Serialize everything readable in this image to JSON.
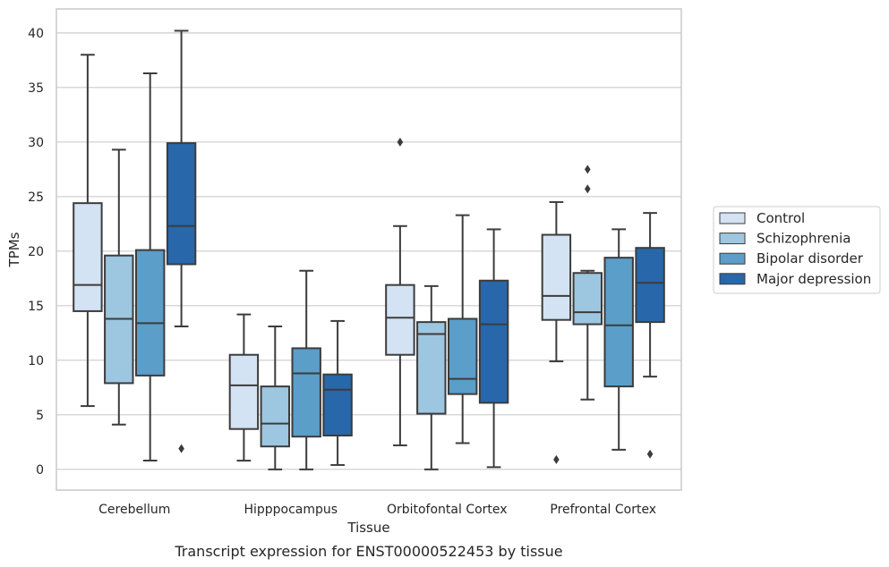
{
  "chart_data": {
    "type": "box",
    "title": "",
    "caption": "Transcript expression for ENST00000522453 by tissue",
    "xlabel": "Tissue",
    "ylabel": "TPMs",
    "ylim": [
      -1.9,
      42.2
    ],
    "yticks": [
      0,
      5,
      10,
      15,
      20,
      25,
      30,
      35,
      40
    ],
    "grid": true,
    "legend_position": "right, outside plot",
    "categories": [
      "Cerebellum",
      "Hipppocampus",
      "Orbitofontal Cortex",
      "Prefrontal Cortex"
    ],
    "series": [
      {
        "name": "Control",
        "color": "#d4e3f3",
        "boxes": [
          {
            "whislo": 5.8,
            "q1": 14.5,
            "med": 16.9,
            "q3": 24.4,
            "whishi": 38.0,
            "fliers": []
          },
          {
            "whislo": 0.8,
            "q1": 3.7,
            "med": 7.7,
            "q3": 10.5,
            "whishi": 14.2,
            "fliers": []
          },
          {
            "whislo": 2.2,
            "q1": 10.5,
            "med": 13.9,
            "q3": 16.9,
            "whishi": 22.3,
            "fliers": [
              30.0
            ]
          },
          {
            "whislo": 9.9,
            "q1": 13.7,
            "med": 15.9,
            "q3": 21.5,
            "whishi": 24.5,
            "fliers": [
              0.9
            ]
          }
        ]
      },
      {
        "name": "Schizophrenia",
        "color": "#9dc6e0",
        "boxes": [
          {
            "whislo": 4.1,
            "q1": 7.9,
            "med": 13.8,
            "q3": 19.6,
            "whishi": 29.3,
            "fliers": []
          },
          {
            "whislo": 0.0,
            "q1": 2.1,
            "med": 4.2,
            "q3": 7.6,
            "whishi": 13.1,
            "fliers": []
          },
          {
            "whislo": 0.0,
            "q1": 5.1,
            "med": 12.4,
            "q3": 13.5,
            "whishi": 16.8,
            "fliers": []
          },
          {
            "whislo": 6.4,
            "q1": 13.3,
            "med": 14.4,
            "q3": 18.0,
            "whishi": 18.2,
            "fliers": [
              25.7,
              27.5
            ]
          }
        ]
      },
      {
        "name": "Bipolar disorder",
        "color": "#5a9ec9",
        "boxes": [
          {
            "whislo": 0.8,
            "q1": 8.6,
            "med": 13.4,
            "q3": 20.1,
            "whishi": 36.3,
            "fliers": []
          },
          {
            "whislo": 0.0,
            "q1": 3.0,
            "med": 8.8,
            "q3": 11.1,
            "whishi": 18.2,
            "fliers": []
          },
          {
            "whislo": 2.4,
            "q1": 6.9,
            "med": 8.3,
            "q3": 13.8,
            "whishi": 23.3,
            "fliers": []
          },
          {
            "whislo": 1.8,
            "q1": 7.6,
            "med": 13.2,
            "q3": 19.4,
            "whishi": 22.0,
            "fliers": []
          }
        ]
      },
      {
        "name": "Major depression",
        "color": "#2767aa",
        "boxes": [
          {
            "whislo": 13.1,
            "q1": 18.8,
            "med": 22.3,
            "q3": 29.9,
            "whishi": 40.2,
            "fliers": [
              1.9
            ]
          },
          {
            "whislo": 0.4,
            "q1": 3.1,
            "med": 7.3,
            "q3": 8.7,
            "whishi": 13.6,
            "fliers": []
          },
          {
            "whislo": 0.2,
            "q1": 6.1,
            "med": 13.3,
            "q3": 17.3,
            "whishi": 22.0,
            "fliers": []
          },
          {
            "whislo": 8.5,
            "q1": 13.5,
            "med": 17.1,
            "q3": 20.3,
            "whishi": 23.5,
            "fliers": [
              1.4
            ]
          }
        ]
      }
    ]
  }
}
